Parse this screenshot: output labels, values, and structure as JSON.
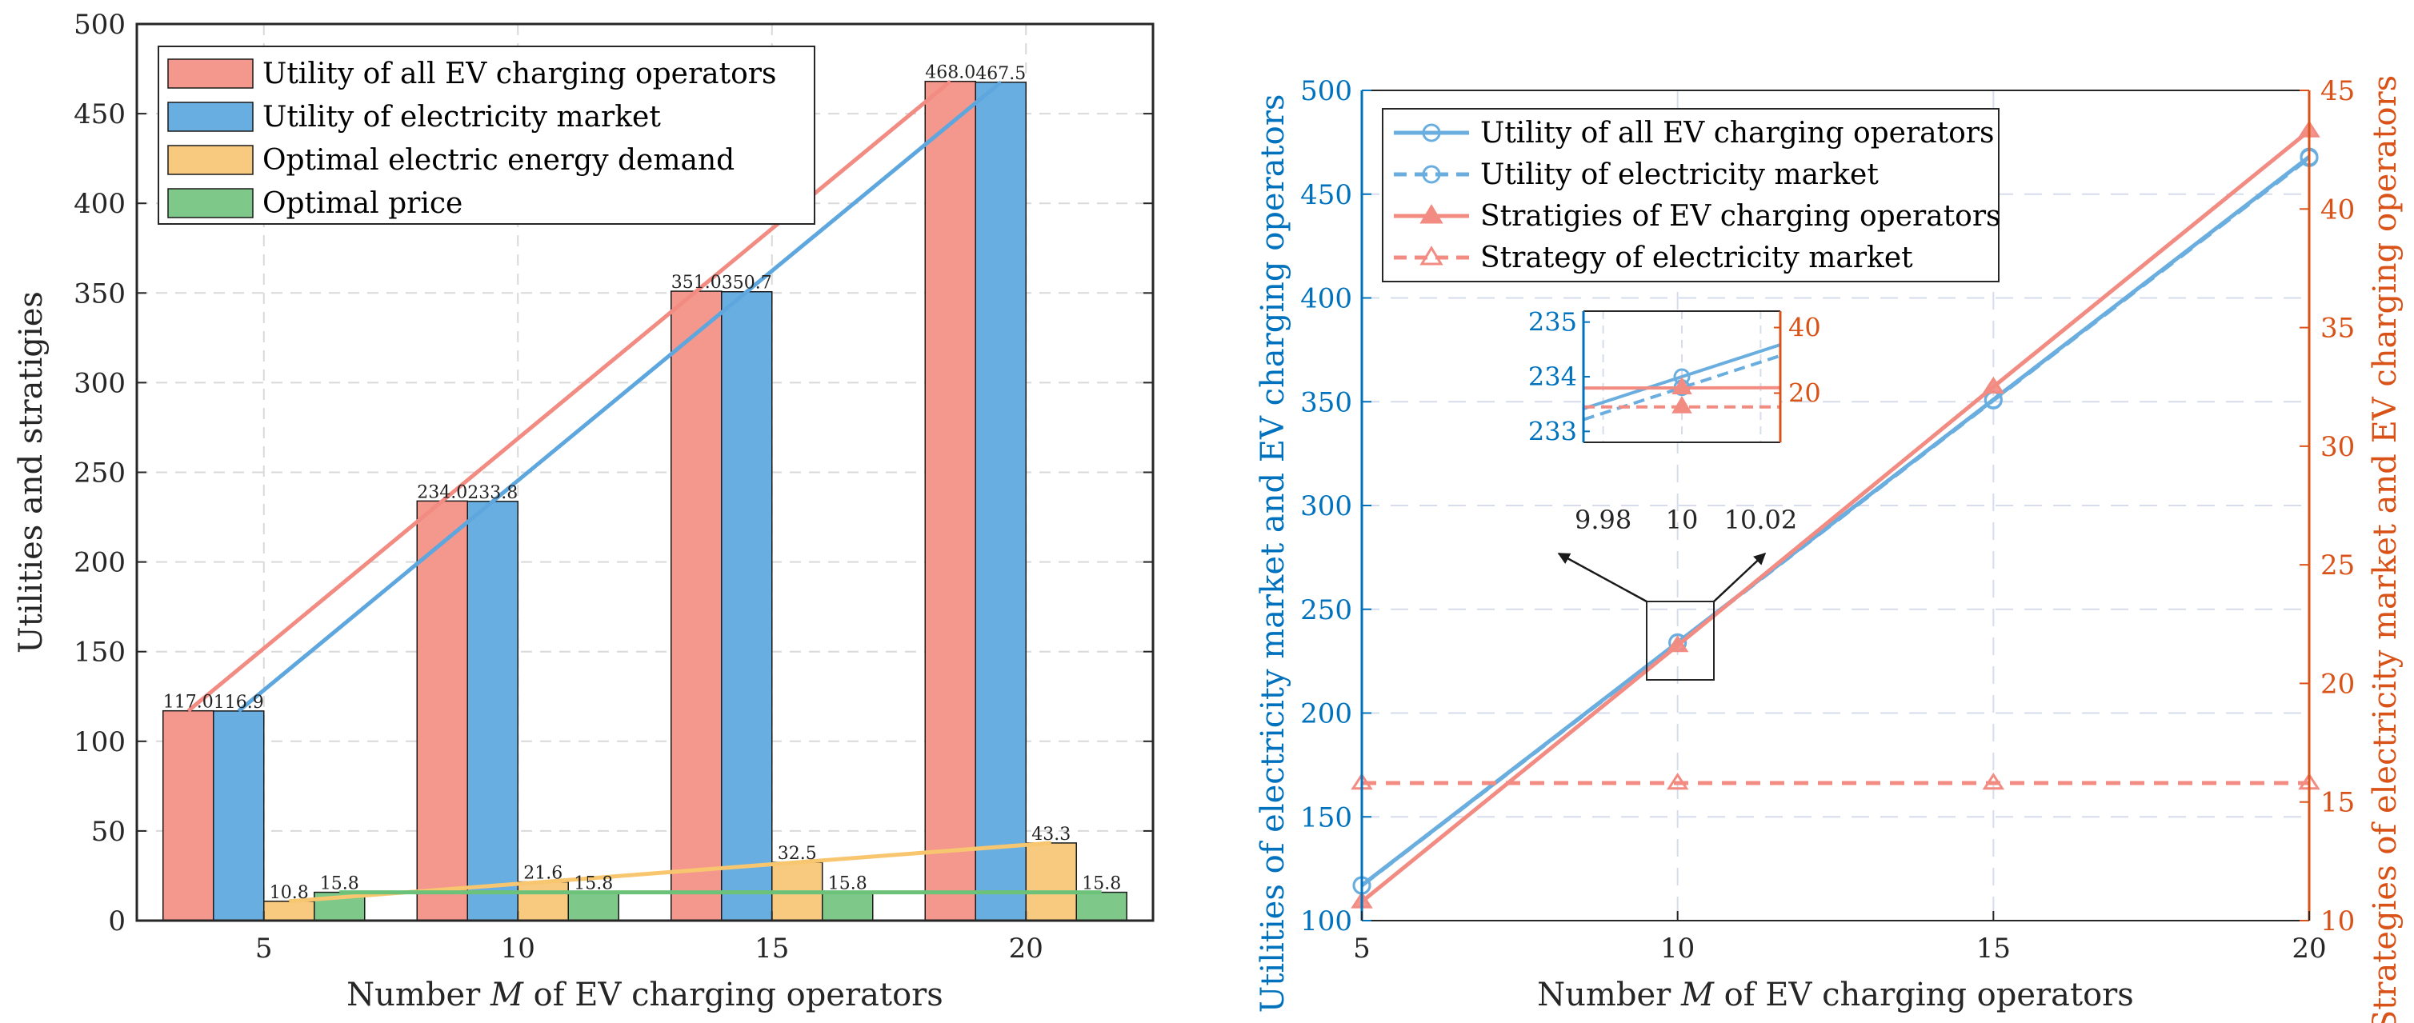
{
  "chart_data": [
    {
      "type": "bar",
      "xlabel": "Number M of EV charging operators",
      "ylabel": "Utilities and stratigies",
      "ylim": [
        0,
        500
      ],
      "yticks": [
        "0",
        "50",
        "100",
        "150",
        "200",
        "250",
        "300",
        "350",
        "400",
        "450",
        "500"
      ],
      "categories": [
        "5",
        "10",
        "15",
        "20"
      ],
      "series": [
        {
          "name": "Utility of all EV charging operators",
          "color": "#F4978C",
          "values": [
            117.0,
            234.0,
            351.0,
            468.0
          ],
          "labels": [
            "117.0",
            "234.0",
            "351.0",
            "468.0"
          ]
        },
        {
          "name": "Utility of electricity market",
          "color": "#69AEE0",
          "values": [
            116.9,
            233.8,
            350.7,
            467.5
          ],
          "labels": [
            "116.9",
            "233.8",
            "350.7",
            "467.5"
          ]
        },
        {
          "name": "Optimal electric energy demand",
          "color": "#F8CA80",
          "values": [
            10.8,
            21.6,
            32.5,
            43.3
          ],
          "labels": [
            "10.8",
            "21.6",
            "32.5",
            "43.3"
          ]
        },
        {
          "name": "Optimal price",
          "color": "#7EC98A",
          "values": [
            15.8,
            15.8,
            15.8,
            15.8
          ],
          "labels": [
            "15.8",
            "15.8",
            "15.8",
            "15.8"
          ]
        }
      ],
      "grid": true,
      "legend": "top-left"
    },
    {
      "type": "line",
      "xlabel": "Number M of EV charging operators",
      "ylabel_left": "Utilities of electricity market and EV charging operators",
      "ylabel_right": "Strategies of electricity market and EV charging operators",
      "x": [
        5,
        10,
        15,
        20
      ],
      "xlim": [
        5,
        20
      ],
      "xticks": [
        "5",
        "10",
        "15",
        "20"
      ],
      "ylim_left": [
        100,
        500
      ],
      "yticks_left": [
        "100",
        "150",
        "200",
        "250",
        "300",
        "350",
        "400",
        "450",
        "500"
      ],
      "ylim_right": [
        10,
        45
      ],
      "yticks_right": [
        "10",
        "15",
        "20",
        "25",
        "30",
        "35",
        "40",
        "45"
      ],
      "series": [
        {
          "name": "Utility of all EV charging operators",
          "axis": "left",
          "style": "solid",
          "marker": "circle",
          "color": "#6AAEE0",
          "values": [
            117.0,
            234.0,
            351.0,
            468.0
          ]
        },
        {
          "name": "Utility of electricity market",
          "axis": "left",
          "style": "dashed",
          "marker": "circle",
          "color": "#6AAEE0",
          "values": [
            116.9,
            233.8,
            350.7,
            467.5
          ]
        },
        {
          "name": "Stratigies of EV charging operators",
          "axis": "right",
          "style": "solid",
          "marker": "triangle",
          "color": "#F28B82",
          "values": [
            10.8,
            21.6,
            32.5,
            43.3
          ]
        },
        {
          "name": "Strategy of electricity market",
          "axis": "right",
          "style": "dashed",
          "marker": "triangle",
          "color": "#F28B82",
          "values": [
            15.8,
            15.8,
            15.8,
            15.8
          ]
        }
      ],
      "inset": {
        "xlim": [
          9.975,
          10.025
        ],
        "xticks": [
          "9.98",
          "10",
          "10.02"
        ],
        "ylim_left": [
          232.8,
          235.2
        ],
        "yticks_left": [
          "233",
          "234",
          "235"
        ],
        "ylim_right": [
          5,
          45
        ],
        "yticks_right": [
          "20",
          "40"
        ]
      },
      "grid": true,
      "legend": "top-left"
    }
  ]
}
